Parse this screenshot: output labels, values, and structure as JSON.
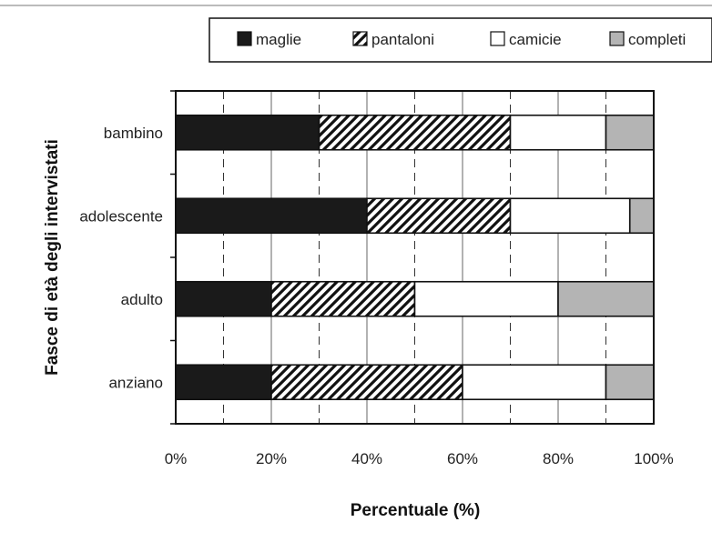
{
  "chart_data": {
    "type": "bar",
    "orientation": "horizontal",
    "stacked": true,
    "categories": [
      "bambino",
      "adolescente",
      "adulto",
      "anziano"
    ],
    "series": [
      {
        "name": "maglie",
        "values": [
          30,
          40,
          20,
          20
        ],
        "fill": "solid-black"
      },
      {
        "name": "pantaloni",
        "values": [
          40,
          30,
          30,
          40
        ],
        "fill": "diagonal-hatch"
      },
      {
        "name": "camicie",
        "values": [
          20,
          25,
          30,
          30
        ],
        "fill": "white"
      },
      {
        "name": "completi",
        "values": [
          10,
          5,
          20,
          10
        ],
        "fill": "gray"
      }
    ],
    "xlabel": "Percentuale (%)",
    "ylabel": "Fasce di età degli intervistati",
    "xlim": [
      0,
      100
    ],
    "x_ticks": [
      0,
      20,
      40,
      60,
      80,
      100
    ],
    "x_tick_labels": [
      "0%",
      "20%",
      "40%",
      "60%",
      "80%",
      "100%"
    ],
    "grid": "vertical, solid at 20% steps, dashed at 10% steps",
    "legend_position": "top-right",
    "colors": {
      "maglie": "#1a1a1a",
      "pantaloni": "#1a1a1a",
      "camicie": "#ffffff",
      "completi": "#b4b4b4"
    }
  }
}
